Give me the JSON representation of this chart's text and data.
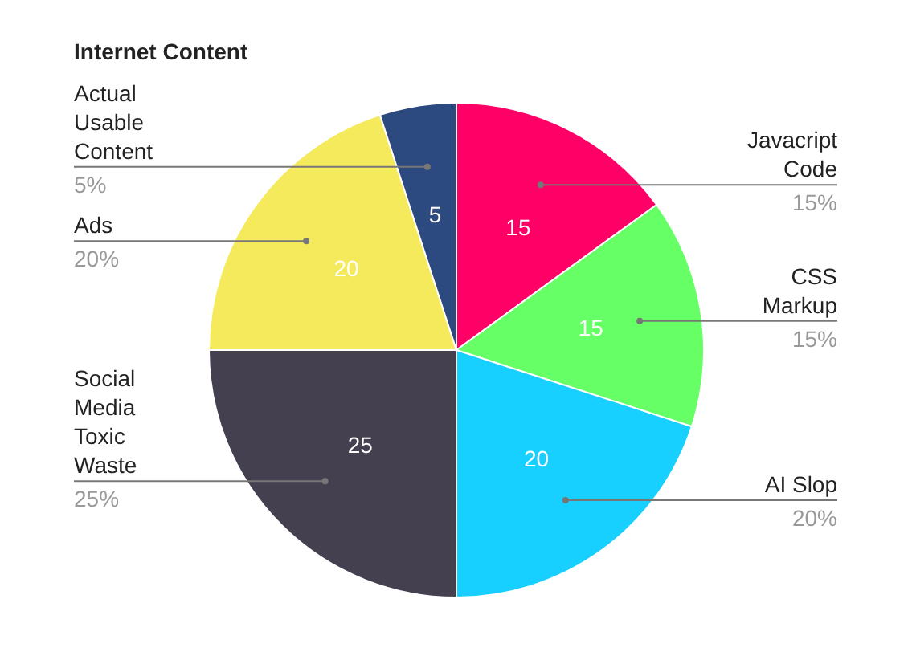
{
  "chart_data": {
    "type": "pie",
    "title": "Internet Content",
    "categories": [
      "Javacript Code",
      "CSS Markup",
      "AI Slop",
      "Social Media Toxic Waste",
      "Ads",
      "Actual Usable Content"
    ],
    "values": [
      15,
      15,
      20,
      25,
      20,
      5
    ],
    "colors": [
      "#ff0066",
      "#66ff66",
      "#17d0ff",
      "#44404f",
      "#f5e95c",
      "#2c4a7f"
    ],
    "data_labels": true,
    "annotations": [
      "15%",
      "15%",
      "20%",
      "25%",
      "20%",
      "5%"
    ]
  }
}
